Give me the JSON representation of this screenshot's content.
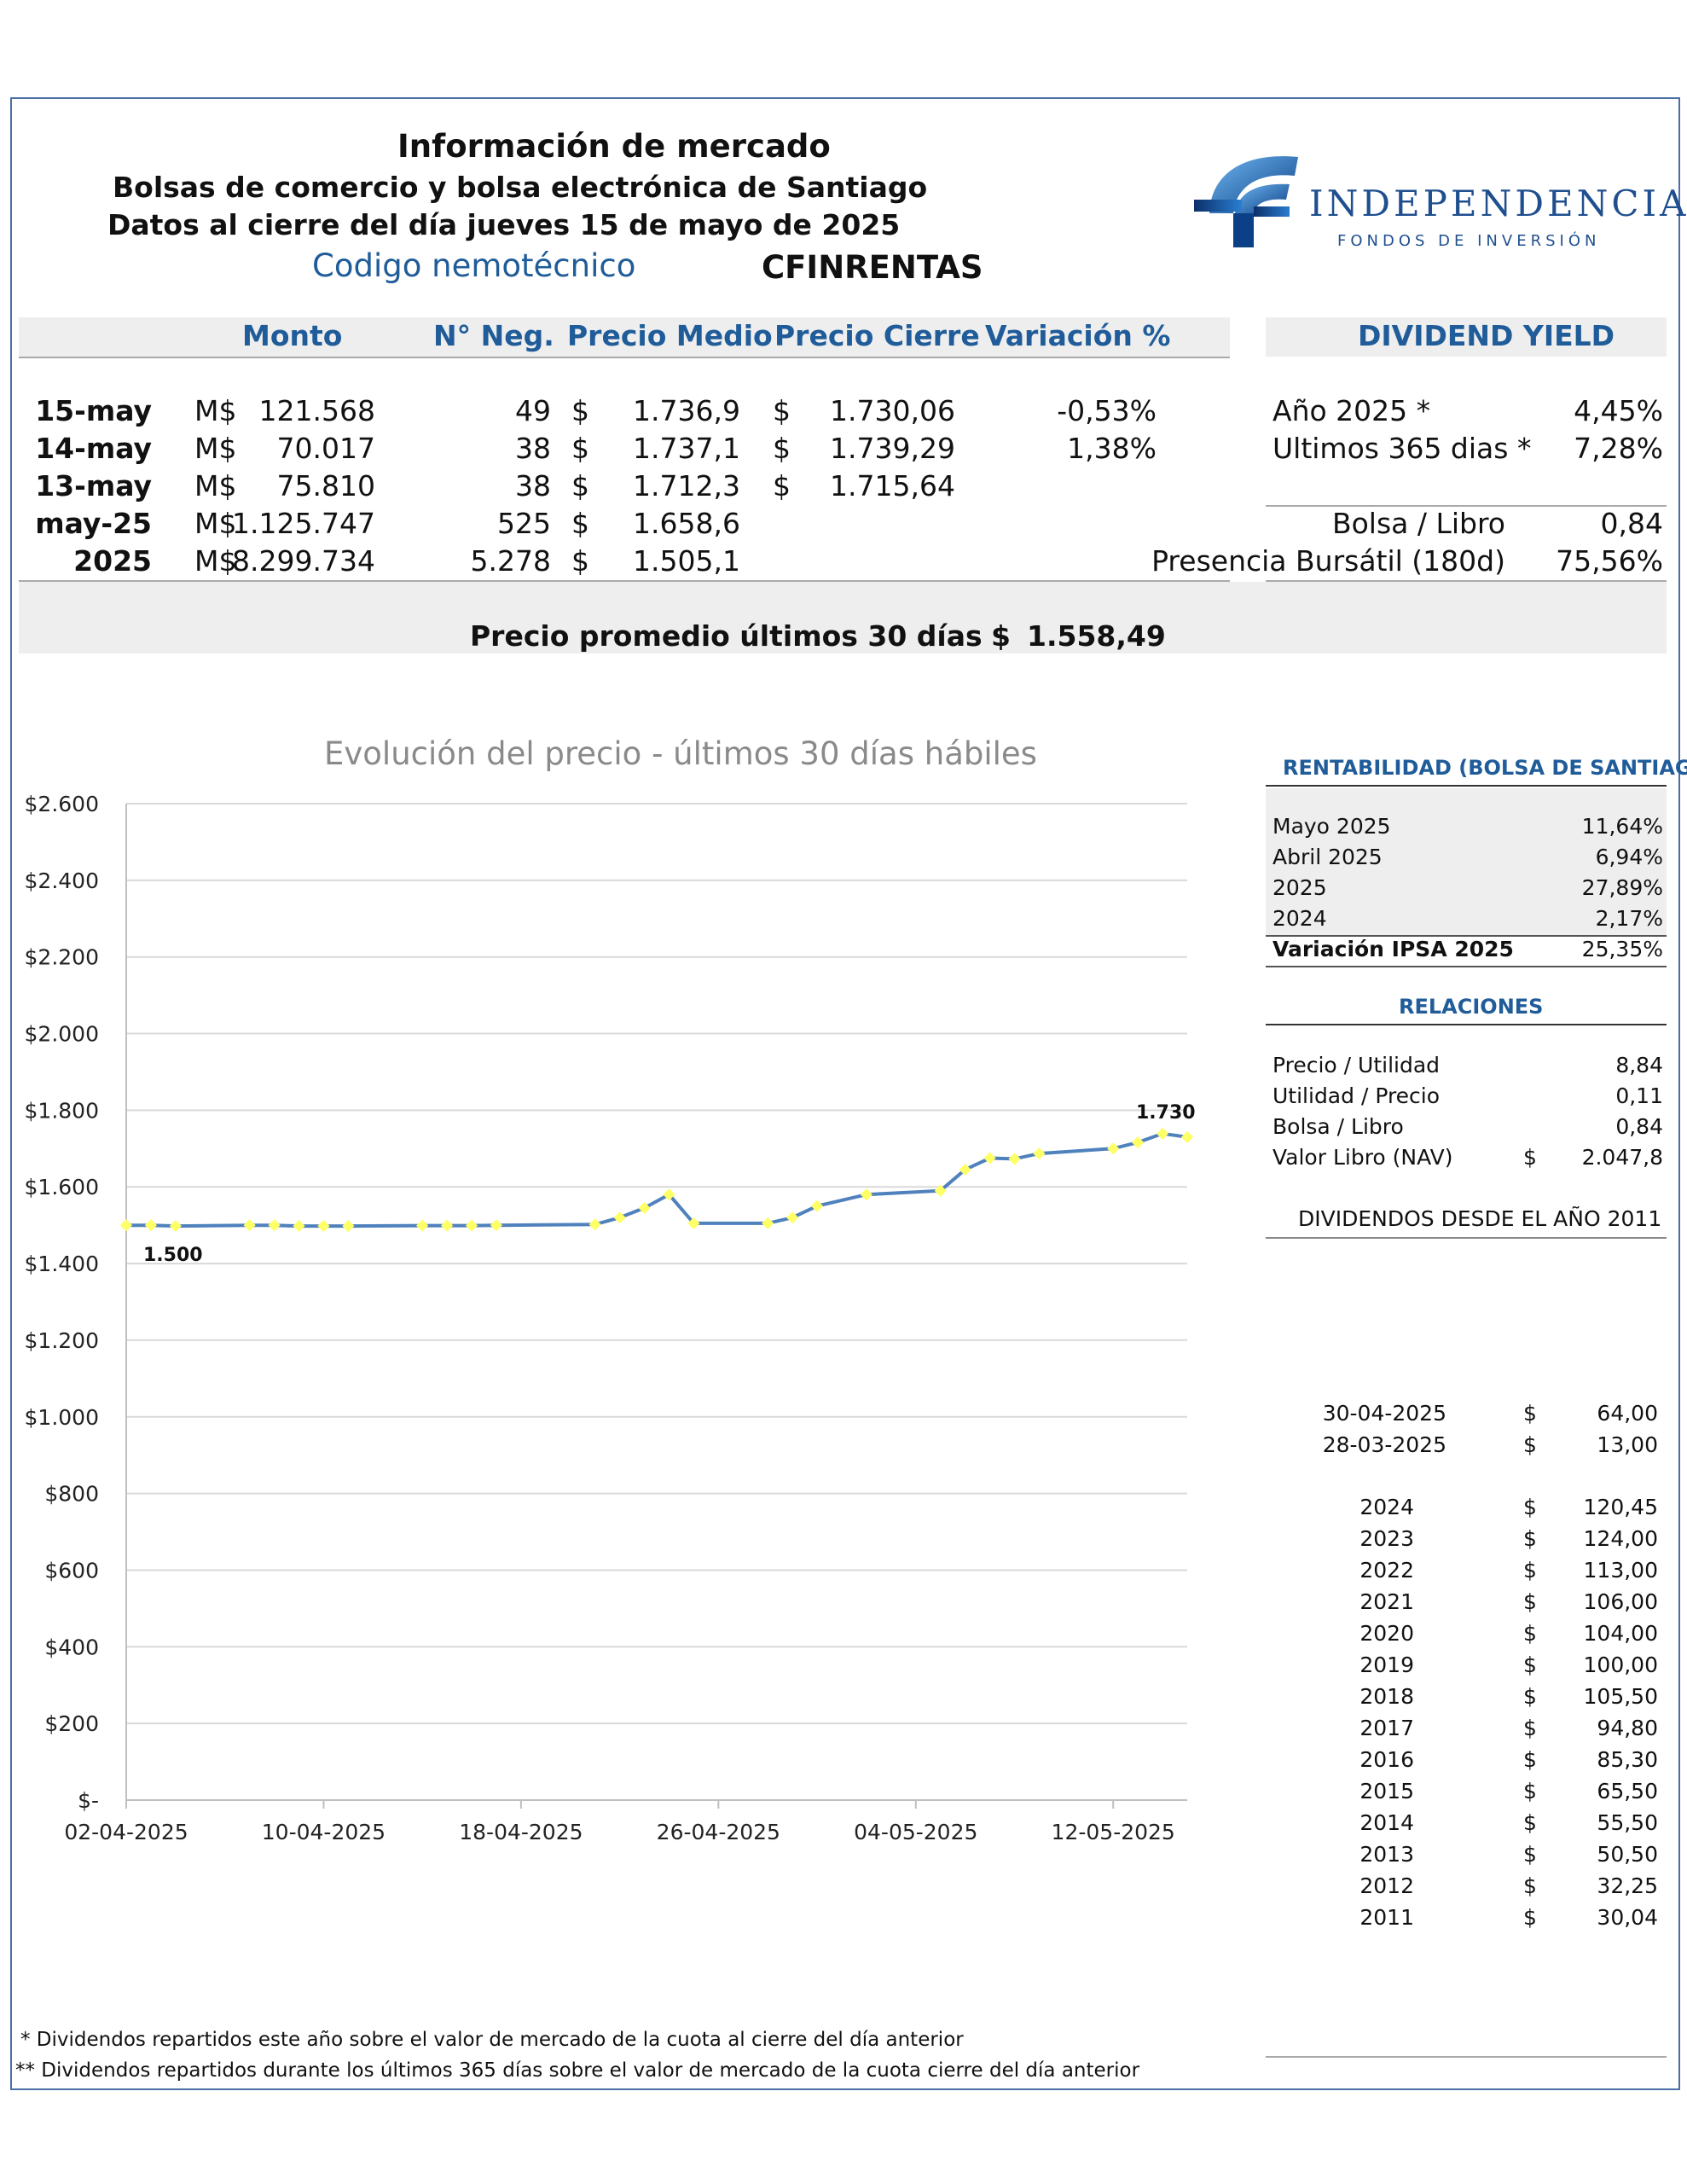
{
  "header": {
    "title": "Información de mercado",
    "subtitle1": "Bolsas de comercio y bolsa electrónica de Santiago",
    "subtitle2": "Datos al cierre del día  jueves 15 de mayo de 2025",
    "code_label": "Codigo nemotécnico",
    "code_value": "CFINRENTAS"
  },
  "logo": {
    "name": "INDEPENDENCIA",
    "tagline": "FONDOS DE INVERSIÓN"
  },
  "market": {
    "columns": [
      "Monto",
      "N° Neg.",
      "Precio Medio",
      "Precio Cierre",
      "Variación %"
    ],
    "rows": [
      {
        "label": "15-may",
        "cur": "M$",
        "monto": "121.568",
        "neg": "49",
        "pm_cur": "$",
        "pm": "1.736,9",
        "pc_cur": "$",
        "pc": "1.730,06",
        "var": "-0,53%"
      },
      {
        "label": "14-may",
        "cur": "M$",
        "monto": "70.017",
        "neg": "38",
        "pm_cur": "$",
        "pm": "1.737,1",
        "pc_cur": "$",
        "pc": "1.739,29",
        "var": "1,38%"
      },
      {
        "label": "13-may",
        "cur": "M$",
        "monto": "75.810",
        "neg": "38",
        "pm_cur": "$",
        "pm": "1.712,3",
        "pc_cur": "$",
        "pc": "1.715,64",
        "var": ""
      },
      {
        "label": "may-25",
        "cur": "M$",
        "monto": "1.125.747",
        "neg": "525",
        "pm_cur": "$",
        "pm": "1.658,6",
        "pc_cur": "",
        "pc": "",
        "var": ""
      },
      {
        "label": "2025",
        "cur": "M$",
        "monto": "8.299.734",
        "neg": "5.278",
        "pm_cur": "$",
        "pm": "1.505,1",
        "pc_cur": "",
        "pc": "",
        "var": ""
      }
    ],
    "avg_label": "Precio promedio últimos 30 días",
    "avg_cur": "$",
    "avg_value": "1.558,49"
  },
  "dividend_yield": {
    "title": "DIVIDEND YIELD",
    "items": [
      {
        "label": "Año 2025 *",
        "value": "4,45%"
      },
      {
        "label": "Ultimos 365 dias *",
        "value": "7,28%"
      }
    ],
    "extra": [
      {
        "label": "Bolsa / Libro",
        "value": "0,84"
      },
      {
        "label": "Presencia Bursátil (180d)",
        "value": "75,56%"
      }
    ]
  },
  "chart_data": {
    "type": "line",
    "title": "Evolución del precio  - últimos 30 días hábiles",
    "x_ticks": [
      "02-04-2025",
      "10-04-2025",
      "18-04-2025",
      "26-04-2025",
      "04-05-2025",
      "12-05-2025"
    ],
    "y_ticks": [
      "$-",
      "$200",
      "$400",
      "$600",
      "$800",
      "$1.000",
      "$1.200",
      "$1.400",
      "$1.600",
      "$1.800",
      "$2.000",
      "$2.200",
      "$2.400",
      "$2.600"
    ],
    "ylim": [
      0,
      2600
    ],
    "xlim": [
      "2025-04-02",
      "2025-05-15"
    ],
    "series": [
      {
        "points": [
          [
            "2025-04-02",
            1500
          ],
          [
            "2025-04-03",
            1500
          ],
          [
            "2025-04-04",
            1498
          ],
          [
            "2025-04-07",
            1500
          ],
          [
            "2025-04-08",
            1500
          ],
          [
            "2025-04-09",
            1498
          ],
          [
            "2025-04-10",
            1498
          ],
          [
            "2025-04-11",
            1498
          ],
          [
            "2025-04-14",
            1499
          ],
          [
            "2025-04-15",
            1499
          ],
          [
            "2025-04-16",
            1499
          ],
          [
            "2025-04-17",
            1500
          ],
          [
            "2025-04-21",
            1502
          ],
          [
            "2025-04-22",
            1520
          ],
          [
            "2025-04-23",
            1545
          ],
          [
            "2025-04-24",
            1580
          ],
          [
            "2025-04-25",
            1505
          ],
          [
            "2025-04-28",
            1505
          ],
          [
            "2025-04-29",
            1520
          ],
          [
            "2025-04-30",
            1550
          ],
          [
            "2025-05-02",
            1580
          ],
          [
            "2025-05-05",
            1590
          ],
          [
            "2025-05-06",
            1645
          ],
          [
            "2025-05-07",
            1675
          ],
          [
            "2025-05-08",
            1673
          ],
          [
            "2025-05-09",
            1687
          ],
          [
            "2025-05-12",
            1700
          ],
          [
            "2025-05-13",
            1716
          ],
          [
            "2025-05-14",
            1739
          ],
          [
            "2025-05-15",
            1730
          ]
        ]
      }
    ],
    "annotations": [
      {
        "date": "2025-04-02",
        "value": 1500,
        "text": "1.500"
      },
      {
        "date": "2025-05-15",
        "value": 1730,
        "text": "1.730"
      }
    ],
    "line_color": "#4f81bd",
    "marker_color": "#ffff66",
    "grid": true
  },
  "rentabilidad": {
    "title": "RENTABILIDAD (BOLSA DE SANTIAGO)",
    "items": [
      {
        "label": "Mayo 2025",
        "value": "11,64%"
      },
      {
        "label": "Abril 2025",
        "value": "6,94%"
      },
      {
        "label": "2025",
        "value": "27,89%"
      },
      {
        "label": "2024",
        "value": "2,17%"
      }
    ],
    "ipsa_label": "Variación IPSA 2025",
    "ipsa_value": "25,35%"
  },
  "relaciones": {
    "title": "RELACIONES",
    "items": [
      {
        "label": "Precio / Utilidad",
        "cur": "",
        "value": "8,84"
      },
      {
        "label": "Utilidad / Precio",
        "cur": "",
        "value": "0,11"
      },
      {
        "label": "Bolsa / Libro",
        "cur": "",
        "value": "0,84"
      },
      {
        "label": "Valor Libro (NAV)",
        "cur": "$",
        "value": "2.047,8"
      }
    ]
  },
  "dividendos": {
    "title": "DIVIDENDOS DESDE EL AÑO 2011",
    "recent": [
      {
        "label": "30-04-2025",
        "cur": "$",
        "value": "64,00"
      },
      {
        "label": "28-03-2025",
        "cur": "$",
        "value": "13,00"
      }
    ],
    "annual": [
      {
        "label": "2024",
        "cur": "$",
        "value": "120,45"
      },
      {
        "label": "2023",
        "cur": "$",
        "value": "124,00"
      },
      {
        "label": "2022",
        "cur": "$",
        "value": "113,00"
      },
      {
        "label": "2021",
        "cur": "$",
        "value": "106,00"
      },
      {
        "label": "2020",
        "cur": "$",
        "value": "104,00"
      },
      {
        "label": "2019",
        "cur": "$",
        "value": "100,00"
      },
      {
        "label": "2018",
        "cur": "$",
        "value": "105,50"
      },
      {
        "label": "2017",
        "cur": "$",
        "value": "94,80"
      },
      {
        "label": "2016",
        "cur": "$",
        "value": "85,30"
      },
      {
        "label": "2015",
        "cur": "$",
        "value": "65,50"
      },
      {
        "label": "2014",
        "cur": "$",
        "value": "55,50"
      },
      {
        "label": "2013",
        "cur": "$",
        "value": "50,50"
      },
      {
        "label": "2012",
        "cur": "$",
        "value": "32,25"
      },
      {
        "label": "2011",
        "cur": "$",
        "value": "30,04"
      }
    ]
  },
  "footnotes": {
    "note1": " * Dividendos repartidos este año sobre el valor de mercado de la cuota  al cierre del día anterior",
    "note2": "** Dividendos repartidos durante los últimos 365 días sobre el valor de mercado de la cuota cierre del día anterior"
  }
}
